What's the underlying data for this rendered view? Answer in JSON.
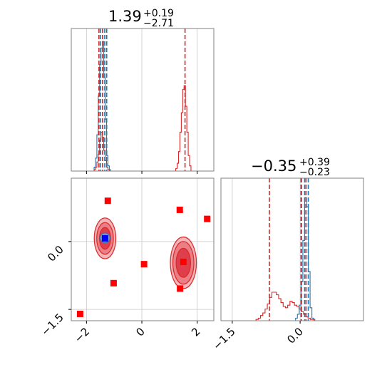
{
  "chart_data": {
    "type": "scatter",
    "subtype": "corner-plot",
    "colors": {
      "blue": "#1f77b4",
      "red": "#d62728",
      "marker_red": "#ff0000",
      "marker_blue": "#0000ff",
      "grid": "#c8c8c8",
      "frame": "#808080"
    },
    "grid": true,
    "params": [
      {
        "title_value": "1.39",
        "title_upper": "+0.19",
        "title_lower": "−2.71",
        "range": [
          -2.55,
          2.6
        ],
        "ticks": [
          -2,
          0,
          2
        ],
        "tick_labels": [
          "−2",
          "0",
          "2"
        ]
      },
      {
        "title_value": "−0.35",
        "title_upper": "+0.39",
        "title_lower": "−0.23",
        "range": [
          -1.75,
          1.4
        ],
        "ticks": [
          -1.5,
          0.0
        ],
        "tick_labels": [
          "−1.5",
          "0.0"
        ]
      }
    ],
    "hist_param0": {
      "ylim": [
        0,
        1.1
      ],
      "blue": {
        "x": [
          -1.75,
          -1.7,
          -1.65,
          -1.6,
          -1.55,
          -1.5,
          -1.45,
          -1.4,
          -1.35,
          -1.3,
          -1.25,
          -1.2,
          -1.15,
          -1.1,
          -1.05
        ],
        "y": [
          0,
          0.03,
          0.1,
          0.28,
          0.58,
          0.82,
          0.95,
          1.0,
          0.72,
          0.4,
          0.12,
          0.04,
          0.01,
          0,
          0
        ]
      },
      "red": {
        "x": [
          -1.75,
          -1.7,
          -1.65,
          -1.6,
          -1.55,
          -1.5,
          -1.45,
          -1.4,
          -1.35,
          -1.3,
          -1.25,
          -1.2,
          -1.15,
          -1.1,
          -1.05,
          1.2,
          1.25,
          1.3,
          1.35,
          1.4,
          1.45,
          1.5,
          1.55,
          1.6,
          1.65,
          1.7,
          1.75,
          1.8
        ],
        "y": [
          0,
          0.01,
          0.03,
          0.07,
          0.13,
          0.24,
          0.3,
          0.26,
          0.16,
          0.08,
          0.03,
          0.01,
          0,
          0,
          0,
          0,
          0.02,
          0.06,
          0.15,
          0.3,
          0.45,
          0.63,
          0.66,
          0.5,
          0.3,
          0.12,
          0.04,
          0
        ]
      },
      "vlines_blue": [
        -1.49,
        -1.34,
        -1.27
      ],
      "vlines_red": [
        -1.55,
        -1.42,
        1.56
      ]
    },
    "hist_param1": {
      "ylim": [
        0,
        1.1
      ],
      "blue": {
        "x": [
          -0.12,
          -0.08,
          -0.04,
          0.0,
          0.04,
          0.08,
          0.12,
          0.16,
          0.2,
          0.24,
          0.28,
          0.32
        ],
        "y": [
          0,
          0.02,
          0.05,
          0.12,
          0.3,
          0.62,
          0.95,
          0.88,
          0.38,
          0.1,
          0.02,
          0
        ]
      },
      "red": {
        "x": [
          -1.0,
          -0.95,
          -0.9,
          -0.85,
          -0.8,
          -0.75,
          -0.7,
          -0.65,
          -0.6,
          -0.55,
          -0.5,
          -0.45,
          -0.4,
          -0.35,
          -0.3,
          -0.25,
          -0.2,
          -0.15,
          -0.1,
          -0.05,
          0.0,
          0.05,
          0.1,
          0.15,
          0.2,
          0.25,
          0.3,
          0.35,
          0.4
        ],
        "y": [
          0,
          0.01,
          0.02,
          0.04,
          0.06,
          0.09,
          0.13,
          0.18,
          0.22,
          0.22,
          0.2,
          0.17,
          0.14,
          0.11,
          0.1,
          0.12,
          0.15,
          0.14,
          0.12,
          0.11,
          0.09,
          0.07,
          0.05,
          0.03,
          0.02,
          0.01,
          0.01,
          0,
          0
        ]
      },
      "vlines_blue": [
        0.02,
        0.1,
        0.18
      ],
      "vlines_red": [
        -0.68,
        0.03,
        0.13
      ]
    },
    "scatter_2d": {
      "x_range": [
        -2.55,
        2.6
      ],
      "y_range": [
        -1.75,
        1.4
      ],
      "red_markers": [
        {
          "x": -1.23,
          "y": 0.9
        },
        {
          "x": 1.37,
          "y": 0.7
        },
        {
          "x": 2.36,
          "y": 0.5
        },
        {
          "x": 0.08,
          "y": -0.5
        },
        {
          "x": 1.5,
          "y": -0.45
        },
        {
          "x": -1.02,
          "y": -0.92
        },
        {
          "x": 1.38,
          "y": -1.04
        },
        {
          "x": -2.23,
          "y": -1.6
        }
      ],
      "blue_marker": {
        "x": -1.33,
        "y": 0.07
      },
      "contours_red": [
        {
          "cx": -1.33,
          "cy": 0.07,
          "rx": 0.39,
          "ry": 0.45
        },
        {
          "cx": -1.33,
          "cy": 0.07,
          "rx": 0.3,
          "ry": 0.35
        },
        {
          "cx": -1.33,
          "cy": 0.07,
          "rx": 0.2,
          "ry": 0.24
        },
        {
          "cx": 1.5,
          "cy": -0.47,
          "rx": 0.47,
          "ry": 0.57
        },
        {
          "cx": 1.5,
          "cy": -0.47,
          "rx": 0.38,
          "ry": 0.47
        },
        {
          "cx": 1.5,
          "cy": -0.47,
          "rx": 0.26,
          "ry": 0.32
        }
      ],
      "contours_blue": [
        {
          "cx": -1.33,
          "cy": 0.08,
          "rx": 0.18,
          "ry": 0.11
        },
        {
          "cx": -1.33,
          "cy": 0.08,
          "rx": 0.1,
          "ry": 0.06
        }
      ]
    }
  }
}
